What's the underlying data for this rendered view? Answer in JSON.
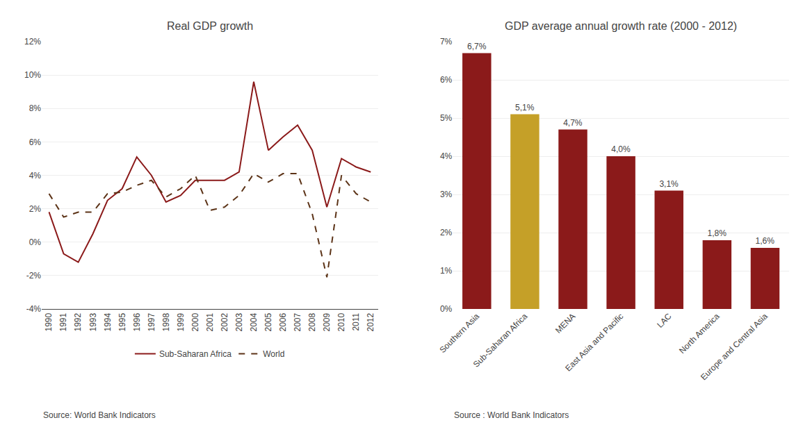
{
  "chart_data": [
    {
      "type": "line",
      "title": "Real GDP growth",
      "x": [
        1990,
        1991,
        1992,
        1993,
        1994,
        1995,
        1996,
        1997,
        1998,
        1999,
        2000,
        2001,
        2002,
        2003,
        2004,
        2005,
        2006,
        2007,
        2008,
        2009,
        2010,
        2011,
        2012
      ],
      "xlim": [
        1989.5,
        2012.5
      ],
      "xticks": [
        1990,
        1991,
        1992,
        1993,
        1994,
        1995,
        1996,
        1997,
        1998,
        1999,
        2000,
        2001,
        2002,
        2003,
        2004,
        2005,
        2006,
        2007,
        2008,
        2009,
        2010,
        2011,
        2012
      ],
      "ylim": [
        -4,
        12
      ],
      "yticks": [
        {
          "value": -4,
          "label": "-4%"
        },
        {
          "value": -2,
          "label": "-2%"
        },
        {
          "value": 0,
          "label": "0%"
        },
        {
          "value": 2,
          "label": "2%"
        },
        {
          "value": 4,
          "label": "4%"
        },
        {
          "value": 6,
          "label": "6%"
        },
        {
          "value": 8,
          "label": "8%"
        },
        {
          "value": 10,
          "label": "10%"
        },
        {
          "value": 12,
          "label": "12%"
        }
      ],
      "grid": true,
      "legend": "bottom",
      "series": [
        {
          "name": "Sub-Saharan Africa",
          "color": "#8B1A1A",
          "line_style": "solid",
          "values": [
            1.8,
            -0.7,
            -1.2,
            0.5,
            2.5,
            3.2,
            5.1,
            4.0,
            2.4,
            2.8,
            3.7,
            3.7,
            3.7,
            4.2,
            9.6,
            5.5,
            6.3,
            7.0,
            5.5,
            2.1,
            5.0,
            4.5,
            4.2
          ]
        },
        {
          "name": "World",
          "color": "#5C3317",
          "line_style": "dashed",
          "values": [
            2.9,
            1.5,
            1.8,
            1.8,
            2.9,
            3.0,
            3.4,
            3.7,
            2.7,
            3.2,
            4.0,
            1.9,
            2.1,
            2.8,
            4.1,
            3.6,
            4.1,
            4.1,
            1.7,
            -2.1,
            4.0,
            2.9,
            2.4
          ]
        }
      ],
      "annotations": [
        "Source: World Bank Indicators"
      ]
    },
    {
      "type": "bar",
      "title": "GDP average annual growth rate (2000 - 2012)",
      "categories": [
        "Southern Asia",
        "Sub-Saharan Africa",
        "MENA",
        "East Asia and Pacific",
        "LAC",
        "North America",
        "Europe and Central Asia"
      ],
      "values": [
        6.7,
        5.1,
        4.7,
        4.0,
        3.1,
        1.8,
        1.6
      ],
      "value_labels": [
        "6,7%",
        "5,1%",
        "4,7%",
        "4,0%",
        "3,1%",
        "1,8%",
        "1,6%"
      ],
      "data_labels": true,
      "colors": [
        "#8B1A1A",
        "#C5A028",
        "#8B1A1A",
        "#8B1A1A",
        "#8B1A1A",
        "#8B1A1A",
        "#8B1A1A"
      ],
      "ylim": [
        0,
        7
      ],
      "yticks": [
        {
          "value": 0,
          "label": "0%"
        },
        {
          "value": 1,
          "label": "1%"
        },
        {
          "value": 2,
          "label": "2%"
        },
        {
          "value": 3,
          "label": "3%"
        },
        {
          "value": 4,
          "label": "4%"
        },
        {
          "value": 5,
          "label": "5%"
        },
        {
          "value": 6,
          "label": "6%"
        },
        {
          "value": 7,
          "label": "7%"
        }
      ],
      "grid": true,
      "annotations": [
        "Source : World Bank Indicators"
      ]
    }
  ]
}
